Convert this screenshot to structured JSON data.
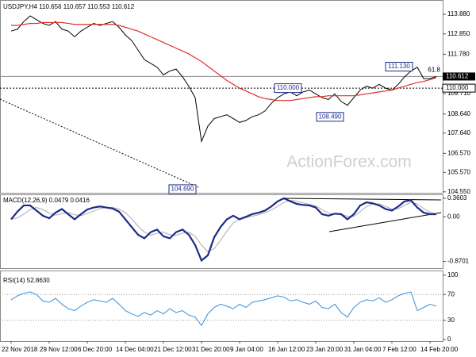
{
  "chart_data": [
    {
      "type": "line",
      "title": "USDJPY,H4 110.656 110.657 110.553 110.612",
      "watermark": "ActionForex.com",
      "ylim": [
        104.5,
        114.55
      ],
      "yticks": [
        {
          "value": 113.88,
          "label": "113.880"
        },
        {
          "value": 112.85,
          "label": "112.850"
        },
        {
          "value": 111.78,
          "label": "111.780"
        },
        {
          "value": 109.71,
          "label": "109.710"
        },
        {
          "value": 108.64,
          "label": "108.640"
        },
        {
          "value": 107.64,
          "label": "107.640"
        },
        {
          "value": 106.57,
          "label": "106.570"
        },
        {
          "value": 105.57,
          "label": "105.570"
        },
        {
          "value": 104.55,
          "label": "104.550"
        }
      ],
      "last": 110.612,
      "level": {
        "value": 110,
        "label": "110.000"
      },
      "fib_label": 61.8,
      "annotations": [
        {
          "value": 111.13,
          "label": "111.130"
        },
        {
          "value": 110,
          "label": "110.000"
        },
        {
          "value": 108.49,
          "label": "108.490"
        },
        {
          "value": 104.69,
          "label": "104.690"
        }
      ],
      "series": [
        {
          "color": "#000000",
          "line_width": 1,
          "values": [
            113.0,
            113.1,
            113.5,
            113.8,
            113.6,
            113.4,
            113.3,
            113.5,
            113.1,
            113.0,
            112.7,
            113.0,
            113.2,
            113.4,
            113.3,
            113.4,
            113.5,
            113.2,
            112.8,
            112.5,
            112.0,
            111.5,
            111.3,
            111.1,
            110.7,
            110.9,
            111.0,
            110.6,
            110.1,
            109.5,
            107.2,
            108.0,
            108.4,
            108.5,
            108.6,
            108.4,
            108.2,
            108.3,
            108.5,
            108.6,
            108.8,
            109.2,
            109.5,
            109.7,
            109.8,
            109.6,
            109.8,
            109.9,
            109.7,
            109.5,
            109.4,
            109.7,
            109.3,
            109.1,
            109.5,
            109.9,
            110.1,
            110.0,
            110.2,
            110.0,
            109.9,
            110.2,
            110.6,
            110.9,
            111.1,
            110.5,
            110.5,
            110.61
          ]
        },
        {
          "color": "#e0312a",
          "line_width": 1.2,
          "values": [
            113.3,
            113.3,
            113.35,
            113.4,
            113.4,
            113.45,
            113.45,
            113.45,
            113.45,
            113.4,
            113.35,
            113.35,
            113.35,
            113.35,
            113.35,
            113.35,
            113.35,
            113.3,
            113.2,
            113.1,
            113.0,
            112.85,
            112.7,
            112.55,
            112.4,
            112.25,
            112.1,
            111.95,
            111.8,
            111.6,
            111.4,
            111.15,
            110.9,
            110.65,
            110.4,
            110.2,
            110.0,
            109.85,
            109.7,
            109.55,
            109.45,
            109.4,
            109.35,
            109.35,
            109.35,
            109.4,
            109.45,
            109.5,
            109.55,
            109.55,
            109.6,
            109.6,
            109.6,
            109.6,
            109.6,
            109.65,
            109.7,
            109.75,
            109.8,
            109.85,
            109.9,
            110.0,
            110.1,
            110.2,
            110.3,
            110.35,
            110.45,
            110.55
          ]
        }
      ]
    },
    {
      "type": "line",
      "title": "MACD(12,26,9) 0.0479 0.0416",
      "ylim": [
        -1.0,
        0.42
      ],
      "yticks": [
        0.3603,
        {
          "value": 0,
          "label": "0.00"
        },
        -0.8701
      ],
      "series": [
        {
          "color": "#aaaaaa",
          "line_width": 1,
          "values": [
            -0.05,
            -0.02,
            0.05,
            0.14,
            0.18,
            0.14,
            0.07,
            0.03,
            0.06,
            0.08,
            0.04,
            0.02,
            0.06,
            0.11,
            0.16,
            0.18,
            0.18,
            0.15,
            0.08,
            -0.04,
            -0.18,
            -0.3,
            -0.36,
            -0.32,
            -0.3,
            -0.35,
            -0.36,
            -0.32,
            -0.3,
            -0.38,
            -0.55,
            -0.68,
            -0.62,
            -0.46,
            -0.28,
            -0.12,
            -0.05,
            -0.02,
            0.01,
            0.04,
            0.08,
            0.13,
            0.2,
            0.28,
            0.32,
            0.3,
            0.27,
            0.24,
            0.21,
            0.14,
            0.07,
            0.05,
            0.05,
            0.01,
            0.01,
            0.1,
            0.2,
            0.25,
            0.25,
            0.2,
            0.15,
            0.16,
            0.22,
            0.28,
            0.25,
            0.16,
            0.09,
            0.06
          ]
        },
        {
          "color": "#1c2a86",
          "line_width": 2.2,
          "values": [
            -0.05,
            0.1,
            0.22,
            0.22,
            0.12,
            0.02,
            -0.03,
            0.08,
            0.15,
            0.05,
            -0.05,
            0.05,
            0.14,
            0.18,
            0.2,
            0.18,
            0.16,
            0.1,
            -0.05,
            -0.2,
            -0.35,
            -0.42,
            -0.3,
            -0.25,
            -0.38,
            -0.42,
            -0.3,
            -0.25,
            -0.35,
            -0.55,
            -0.85,
            -0.75,
            -0.4,
            -0.2,
            -0.05,
            0.02,
            -0.05,
            0.0,
            0.05,
            0.08,
            0.12,
            0.2,
            0.3,
            0.36,
            0.3,
            0.25,
            0.23,
            0.22,
            0.18,
            0.05,
            0.02,
            0.06,
            0.05,
            -0.05,
            0.05,
            0.22,
            0.28,
            0.26,
            0.22,
            0.15,
            0.12,
            0.2,
            0.3,
            0.32,
            0.18,
            0.08,
            0.05,
            0.05
          ]
        }
      ]
    },
    {
      "type": "line",
      "title": "RSI(14) 52.8630",
      "ylim": [
        0,
        100
      ],
      "yticks": [
        100,
        70,
        30,
        0
      ],
      "grid": true,
      "categories": [
        "22 Nov 2018",
        null,
        null,
        null,
        null,
        null,
        "29 Nov 12:00",
        null,
        null,
        null,
        null,
        null,
        "6 Dec 20:00",
        null,
        null,
        null,
        null,
        null,
        "14 Dec 04:00",
        null,
        null,
        null,
        null,
        null,
        "21 Dec 12:00",
        null,
        null,
        null,
        null,
        null,
        "31 Dec 20:00",
        null,
        null,
        null,
        null,
        null,
        "9 Jan 04:00",
        null,
        null,
        null,
        null,
        null,
        "16 Jan 12:00",
        null,
        null,
        null,
        null,
        null,
        "23 Jan 20:00",
        null,
        null,
        null,
        null,
        null,
        "31 Jan 04:00",
        null,
        null,
        null,
        null,
        null,
        "7 Feb 12:00",
        null,
        null,
        null,
        null,
        null,
        "14 Feb 20:00",
        null
      ],
      "series": [
        {
          "color": "#3a8fd9",
          "line_width": 1,
          "values": [
            62,
            68,
            72,
            74,
            70,
            60,
            58,
            64,
            55,
            48,
            45,
            52,
            58,
            62,
            60,
            58,
            64,
            55,
            45,
            40,
            36,
            42,
            38,
            45,
            40,
            48,
            42,
            45,
            38,
            35,
            22,
            40,
            50,
            55,
            52,
            48,
            55,
            50,
            58,
            60,
            62,
            65,
            68,
            66,
            60,
            62,
            58,
            55,
            60,
            50,
            48,
            55,
            42,
            35,
            50,
            58,
            62,
            60,
            65,
            58,
            62,
            68,
            72,
            74,
            45,
            50,
            55,
            52
          ]
        }
      ]
    }
  ]
}
